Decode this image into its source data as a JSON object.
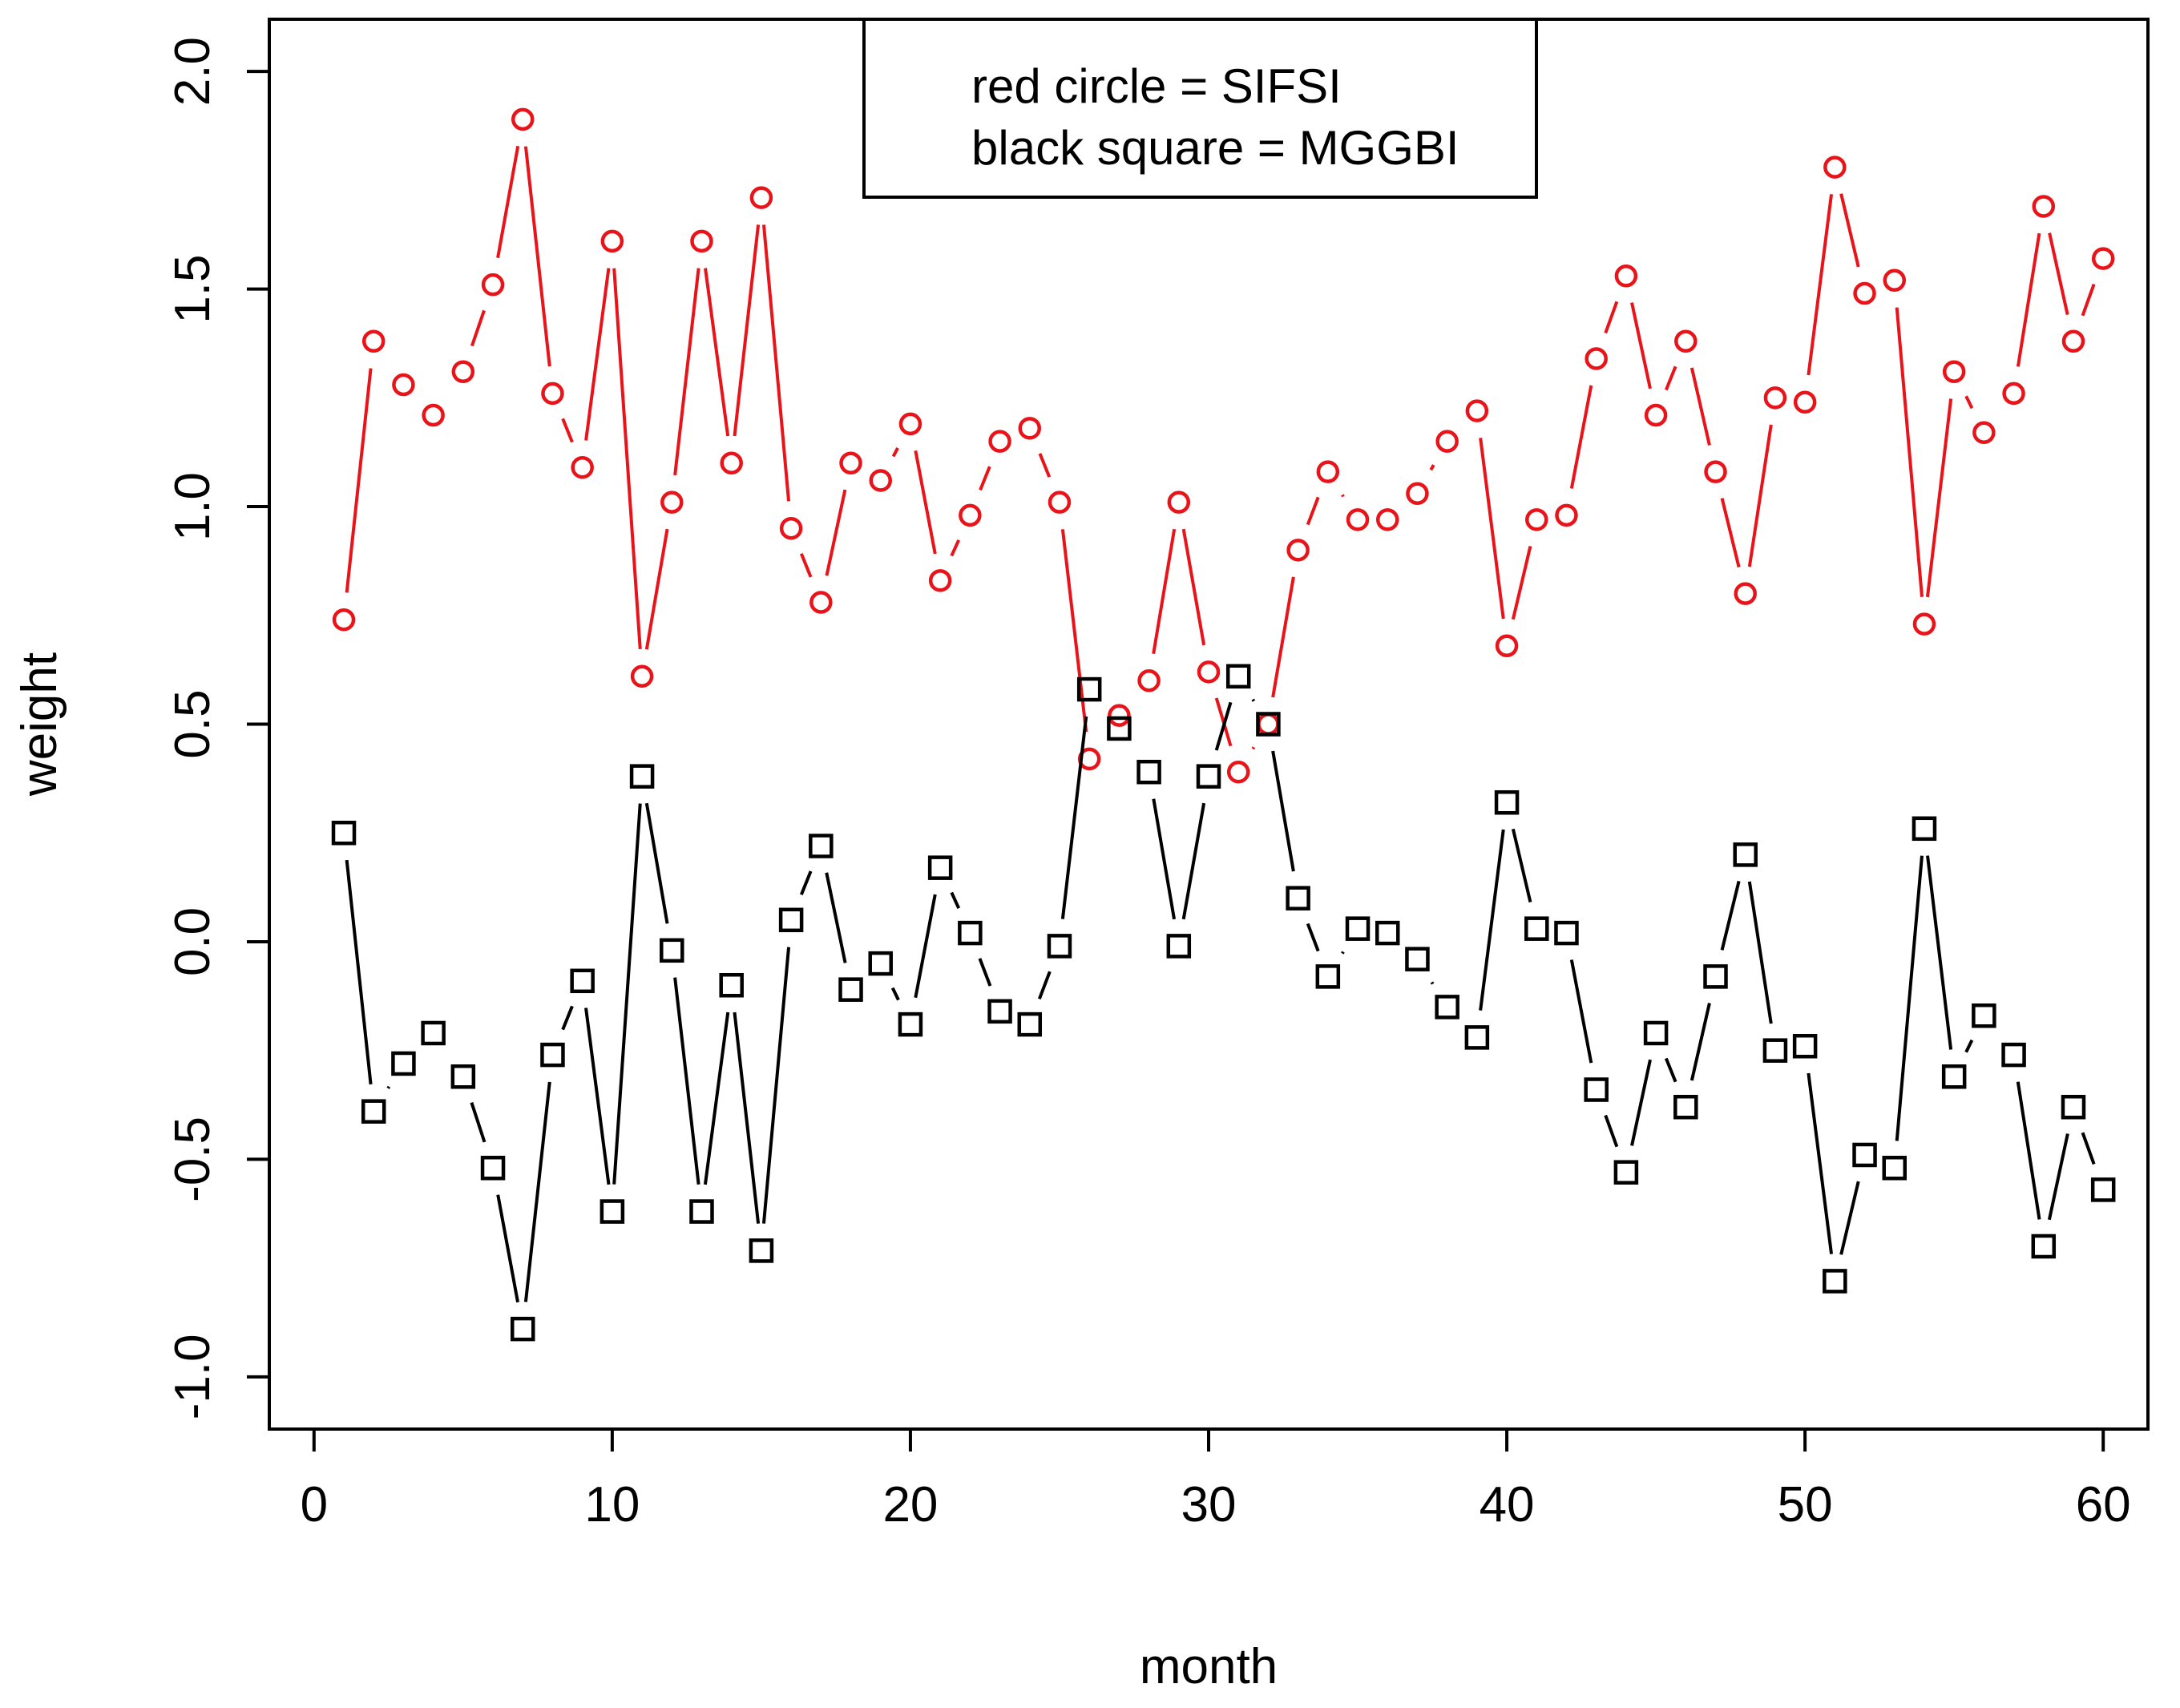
{
  "chart_data": {
    "type": "line",
    "xlabel": "month",
    "ylabel": "weight",
    "xlim": [
      -1.5,
      61.5
    ],
    "ylim": [
      -1.12,
      2.12
    ],
    "xticks": [
      "0",
      "10",
      "20",
      "30",
      "40",
      "50",
      "60"
    ],
    "yticks": [
      "-1.0",
      "-0.5",
      "0.0",
      "0.5",
      "1.0",
      "1.5",
      "2.0"
    ],
    "legend": {
      "position": "top-center",
      "entries": [
        "red circle = SIFSI",
        "black square = MGGBI"
      ]
    },
    "x": [
      1,
      2,
      3,
      4,
      5,
      6,
      7,
      8,
      9,
      10,
      11,
      12,
      13,
      14,
      15,
      16,
      17,
      18,
      19,
      20,
      21,
      22,
      23,
      24,
      25,
      26,
      27,
      28,
      29,
      30,
      31,
      32,
      33,
      34,
      35,
      36,
      37,
      38,
      39,
      40,
      41,
      42,
      43,
      44,
      45,
      46,
      47,
      48,
      49,
      50,
      51,
      52,
      53,
      54,
      55,
      56,
      57,
      58,
      59,
      60
    ],
    "series": [
      {
        "name": "SIFSI",
        "color": "#e8141a",
        "marker": "circle",
        "values": [
          0.74,
          1.38,
          1.28,
          1.21,
          1.31,
          1.51,
          1.89,
          1.26,
          1.09,
          1.61,
          0.61,
          1.01,
          1.61,
          1.1,
          1.71,
          0.95,
          0.78,
          1.1,
          1.06,
          1.19,
          0.83,
          0.98,
          1.15,
          1.18,
          1.01,
          0.42,
          0.52,
          0.6,
          1.01,
          0.62,
          0.39,
          0.5,
          0.9,
          1.08,
          0.97,
          0.97,
          1.03,
          1.15,
          1.22,
          0.68,
          0.97,
          0.98,
          1.34,
          1.53,
          1.21,
          1.38,
          1.08,
          0.8,
          1.25,
          1.24,
          1.78,
          1.49,
          1.52,
          0.73,
          1.31,
          1.17,
          1.26,
          1.69,
          1.38,
          1.57
        ]
      },
      {
        "name": "MGGBI",
        "color": "#000000",
        "marker": "square",
        "values": [
          0.25,
          -0.39,
          -0.28,
          -0.21,
          -0.31,
          -0.52,
          -0.89,
          -0.26,
          -0.09,
          -0.62,
          0.38,
          -0.02,
          -0.62,
          -0.1,
          -0.71,
          0.05,
          0.22,
          -0.11,
          -0.05,
          -0.19,
          0.17,
          0.02,
          -0.16,
          -0.19,
          -0.01,
          0.58,
          0.49,
          0.39,
          -0.01,
          0.38,
          0.61,
          0.5,
          0.1,
          -0.08,
          0.03,
          0.02,
          -0.04,
          -0.15,
          -0.22,
          0.32,
          0.03,
          0.02,
          -0.34,
          -0.53,
          -0.21,
          -0.38,
          -0.08,
          0.2,
          -0.25,
          -0.24,
          -0.78,
          -0.49,
          -0.52,
          0.26,
          -0.31,
          -0.17,
          -0.26,
          -0.7,
          -0.38,
          -0.57
        ]
      }
    ]
  }
}
